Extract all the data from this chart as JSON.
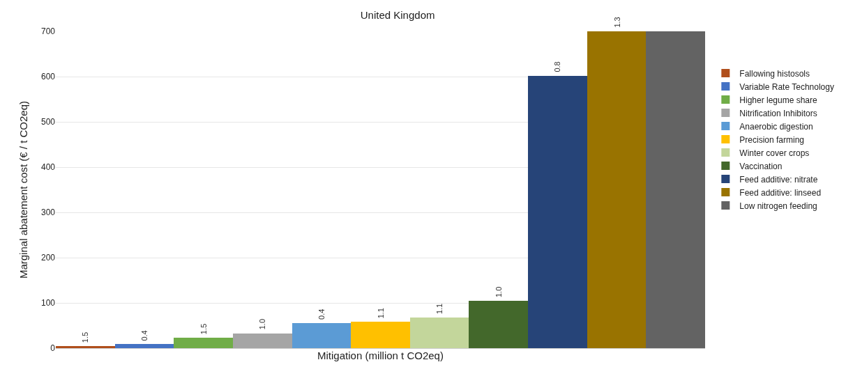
{
  "chart_data": {
    "type": "bar",
    "title": "United Kingdom",
    "xlabel": "Mitigation (million t CO2eq)",
    "ylabel": "Marginal abatement cost (€ / t CO2eq)",
    "categories": [
      null,
      null,
      null,
      null,
      null,
      null,
      null,
      null,
      null,
      null,
      null
    ],
    "stacked": true,
    "ylim": [
      0,
      700
    ],
    "yticks": [
      0,
      100,
      200,
      300,
      400,
      500,
      600,
      700
    ],
    "tick_labels": "y",
    "grid": "y",
    "legend": "right",
    "series": [
      {
        "name": "Fallowing histosols",
        "color": "#b04f1c",
        "values": [
          4,
          null,
          null,
          null,
          null,
          null,
          null,
          null,
          null,
          null,
          null
        ]
      },
      {
        "name": "Variable Rate Technology",
        "color": "#4472c4",
        "values": [
          null,
          9,
          null,
          null,
          null,
          null,
          null,
          null,
          null,
          null,
          null
        ]
      },
      {
        "name": "Higher legume share",
        "color": "#70ad47",
        "values": [
          null,
          null,
          23,
          null,
          null,
          null,
          null,
          null,
          null,
          null,
          null
        ]
      },
      {
        "name": "Nitrification Inhibitors",
        "color": "#a5a5a5",
        "values": [
          null,
          null,
          null,
          33,
          null,
          null,
          null,
          null,
          null,
          null,
          null
        ]
      },
      {
        "name": "Anaerobic digestion",
        "color": "#5b9bd5",
        "values": [
          null,
          null,
          null,
          null,
          56,
          null,
          null,
          null,
          null,
          null,
          null
        ]
      },
      {
        "name": "Precision farming",
        "color": "#ffc000",
        "values": [
          null,
          null,
          null,
          null,
          null,
          58,
          null,
          null,
          null,
          null,
          null
        ]
      },
      {
        "name": "Winter cover crops",
        "color": "#c3d69b",
        "values": [
          null,
          null,
          null,
          null,
          null,
          null,
          67,
          null,
          null,
          null,
          null
        ]
      },
      {
        "name": "Vaccination",
        "color": "#43682b",
        "values": [
          null,
          null,
          null,
          null,
          null,
          null,
          null,
          105,
          null,
          null,
          null
        ]
      },
      {
        "name": "Feed additive: nitrate",
        "color": "#264478",
        "values": [
          null,
          null,
          null,
          null,
          null,
          null,
          null,
          null,
          602,
          null,
          null
        ]
      },
      {
        "name": "Feed additive: linseed",
        "color": "#997300",
        "values": [
          null,
          null,
          null,
          null,
          null,
          null,
          null,
          null,
          null,
          700,
          null
        ]
      },
      {
        "name": "Low nitrogen feeding",
        "color": "#636363",
        "values": [
          null,
          null,
          null,
          null,
          null,
          null,
          null,
          null,
          null,
          null,
          700
        ]
      }
    ],
    "annotations": [
      {
        "text": "1.5",
        "y": 4
      },
      {
        "text": "0.4",
        "y": 9
      },
      {
        "text": "1.5",
        "y": 23
      },
      {
        "text": "1.0",
        "y": 33
      },
      {
        "text": "0.4",
        "y": 56
      },
      {
        "text": "1.1",
        "y": 58
      },
      {
        "text": "1.1",
        "y": 67
      },
      {
        "text": "1.0",
        "y": 105
      },
      {
        "text": "0.8",
        "y": 602
      },
      {
        "text": "1.3",
        "y": 700
      }
    ]
  }
}
